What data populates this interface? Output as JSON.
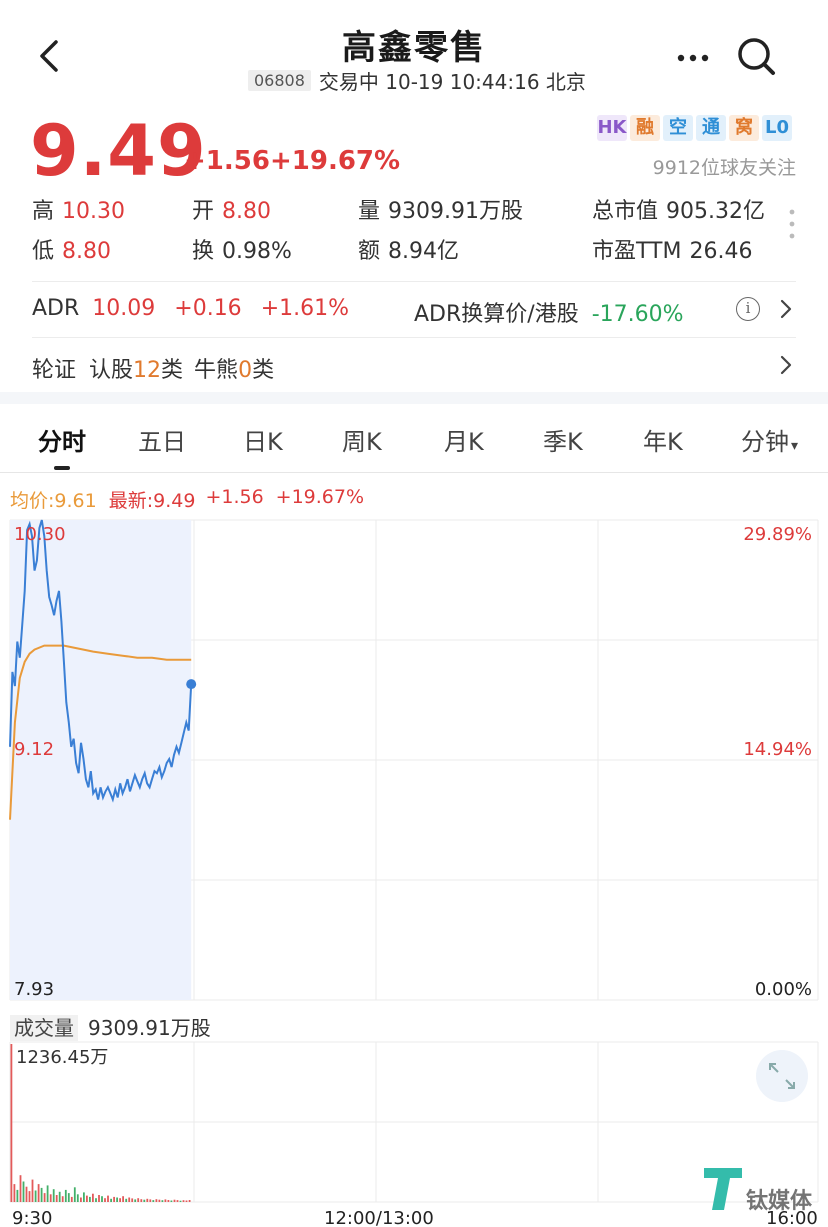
{
  "header": {
    "title": "高鑫零售",
    "code": "06808",
    "status": "交易中 10-19 10:44:16 北京"
  },
  "quote": {
    "price": "9.49",
    "change": "+1.56",
    "change_pct": "+19.67%",
    "tags": [
      {
        "label": "HK",
        "color": "#8a58c8",
        "bg": "#efe7fa"
      },
      {
        "label": "融",
        "color": "#e07a2e",
        "bg": "#fcebdc"
      },
      {
        "label": "空",
        "color": "#2f8fd6",
        "bg": "#e2f0fb"
      },
      {
        "label": "通",
        "color": "#2f8fd6",
        "bg": "#e2f0fb"
      },
      {
        "label": "窝",
        "color": "#e07a2e",
        "bg": "#fcebdc"
      },
      {
        "label": "L0",
        "color": "#2f8fd6",
        "bg": "#e2f0fb"
      }
    ],
    "followers": "9912位球友关注"
  },
  "stats": {
    "high_label": "高",
    "high": "10.30",
    "open_label": "开",
    "open": "8.80",
    "volume_label": "量",
    "volume": "9309.91万股",
    "mcap_label": "总市值",
    "mcap": "905.32亿",
    "low_label": "低",
    "low": "8.80",
    "turnover_label": "换",
    "turnover": "0.98%",
    "amount_label": "额",
    "amount": "8.94亿",
    "pe_label": "市盈TTM",
    "pe": "26.46"
  },
  "adr": {
    "label": "ADR",
    "price": "10.09",
    "change": "+0.16",
    "change_pct": "+1.61%",
    "conv_label": "ADR换算价/港股",
    "conv_value": "-17.60%"
  },
  "warrants": {
    "prefix": "轮证",
    "rengu_label": "认股",
    "rengu_count": "12",
    "rengu_suffix": "类",
    "niuxiong_label": "牛熊",
    "niuxiong_count": "0",
    "niuxiong_suffix": "类"
  },
  "tabs": [
    "分时",
    "五日",
    "日K",
    "周K",
    "月K",
    "季K",
    "年K",
    "分钟"
  ],
  "legend": {
    "avg": "均价:9.61",
    "latest": "最新:9.49",
    "change": "+1.56",
    "change_pct": "+19.67%"
  },
  "chart_data": {
    "type": "line",
    "title": "",
    "y_left_ticks": [
      "10.30",
      "9.12",
      "7.93"
    ],
    "y_right_ticks": [
      "29.89%",
      "14.94%",
      "0.00%"
    ],
    "ylim": [
      7.93,
      10.3
    ],
    "x_ticks": [
      "9:30",
      "12:00/13:00",
      "16:00"
    ],
    "series": [
      {
        "name": "最新",
        "color": "#3a7fd5",
        "x_minutes": [
          0,
          1,
          2,
          3,
          4,
          5,
          6,
          7,
          8,
          9,
          10,
          11,
          12,
          13,
          14,
          15,
          16,
          17,
          18,
          19,
          20,
          21,
          22,
          23,
          24,
          25,
          26,
          27,
          28,
          29,
          30,
          31,
          32,
          33,
          34,
          35,
          36,
          37,
          38,
          39,
          40,
          41,
          42,
          43,
          44,
          45,
          46,
          47,
          48,
          49,
          50,
          51,
          52,
          53,
          54,
          55,
          56,
          57,
          58,
          59,
          60,
          61,
          62,
          63,
          64,
          65,
          66,
          67,
          68,
          69,
          70,
          71,
          72,
          73,
          74
        ],
        "values": [
          9.18,
          9.55,
          9.48,
          9.7,
          9.62,
          9.78,
          9.95,
          10.25,
          10.28,
          10.22,
          10.05,
          10.1,
          10.26,
          10.3,
          10.22,
          10.05,
          9.92,
          9.88,
          9.83,
          9.9,
          9.95,
          9.8,
          9.6,
          9.4,
          9.3,
          9.18,
          9.22,
          9.1,
          9.05,
          9.2,
          9.12,
          9.02,
          8.98,
          9.06,
          8.95,
          8.97,
          8.92,
          8.98,
          8.93,
          8.96,
          8.98,
          8.95,
          8.92,
          8.97,
          8.93,
          9.0,
          8.95,
          8.98,
          9.02,
          8.96,
          9.0,
          9.04,
          9.01,
          8.98,
          9.02,
          9.05,
          9.0,
          8.98,
          9.02,
          9.06,
          9.05,
          9.08,
          9.03,
          9.06,
          9.1,
          9.12,
          9.08,
          9.14,
          9.18,
          9.15,
          9.2,
          9.25,
          9.3,
          9.26,
          9.49
        ]
      },
      {
        "name": "均价",
        "color": "#e99a3a",
        "x_minutes": [
          0,
          2,
          4,
          6,
          8,
          10,
          14,
          18,
          22,
          26,
          30,
          34,
          40,
          46,
          52,
          58,
          64,
          70,
          74
        ],
        "values": [
          8.82,
          9.3,
          9.52,
          9.6,
          9.64,
          9.66,
          9.68,
          9.68,
          9.68,
          9.67,
          9.66,
          9.65,
          9.64,
          9.63,
          9.62,
          9.62,
          9.61,
          9.61,
          9.61
        ]
      }
    ],
    "volume": {
      "total_label": "成交量",
      "total": "9309.91万股",
      "max_label": "1236.45万",
      "bars": [
        {
          "v": 1236,
          "c": "r"
        },
        {
          "v": 140,
          "c": "r"
        },
        {
          "v": 95,
          "c": "g"
        },
        {
          "v": 210,
          "c": "r"
        },
        {
          "v": 160,
          "c": "g"
        },
        {
          "v": 120,
          "c": "r"
        },
        {
          "v": 85,
          "c": "r"
        },
        {
          "v": 175,
          "c": "r"
        },
        {
          "v": 90,
          "c": "g"
        },
        {
          "v": 140,
          "c": "r"
        },
        {
          "v": 110,
          "c": "g"
        },
        {
          "v": 70,
          "c": "r"
        },
        {
          "v": 130,
          "c": "g"
        },
        {
          "v": 60,
          "c": "r"
        },
        {
          "v": 100,
          "c": "g"
        },
        {
          "v": 55,
          "c": "r"
        },
        {
          "v": 80,
          "c": "g"
        },
        {
          "v": 45,
          "c": "r"
        },
        {
          "v": 95,
          "c": "g"
        },
        {
          "v": 70,
          "c": "g"
        },
        {
          "v": 40,
          "c": "r"
        },
        {
          "v": 115,
          "c": "g"
        },
        {
          "v": 60,
          "c": "g"
        },
        {
          "v": 35,
          "c": "r"
        },
        {
          "v": 75,
          "c": "g"
        },
        {
          "v": 50,
          "c": "r"
        },
        {
          "v": 40,
          "c": "g"
        },
        {
          "v": 65,
          "c": "r"
        },
        {
          "v": 30,
          "c": "g"
        },
        {
          "v": 55,
          "c": "r"
        },
        {
          "v": 45,
          "c": "g"
        },
        {
          "v": 30,
          "c": "r"
        },
        {
          "v": 50,
          "c": "r"
        },
        {
          "v": 25,
          "c": "g"
        },
        {
          "v": 40,
          "c": "r"
        },
        {
          "v": 35,
          "c": "g"
        },
        {
          "v": 30,
          "c": "r"
        },
        {
          "v": 45,
          "c": "r"
        },
        {
          "v": 25,
          "c": "g"
        },
        {
          "v": 35,
          "c": "r"
        },
        {
          "v": 28,
          "c": "r"
        },
        {
          "v": 20,
          "c": "g"
        },
        {
          "v": 30,
          "c": "r"
        },
        {
          "v": 22,
          "c": "r"
        },
        {
          "v": 18,
          "c": "g"
        },
        {
          "v": 25,
          "c": "r"
        },
        {
          "v": 20,
          "c": "r"
        },
        {
          "v": 15,
          "c": "g"
        },
        {
          "v": 22,
          "c": "r"
        },
        {
          "v": 18,
          "c": "r"
        },
        {
          "v": 14,
          "c": "g"
        },
        {
          "v": 20,
          "c": "r"
        },
        {
          "v": 16,
          "c": "r"
        },
        {
          "v": 12,
          "c": "g"
        },
        {
          "v": 18,
          "c": "r"
        },
        {
          "v": 15,
          "c": "r"
        },
        {
          "v": 10,
          "c": "g"
        },
        {
          "v": 14,
          "c": "r"
        },
        {
          "v": 12,
          "c": "r"
        },
        {
          "v": 16,
          "c": "r"
        }
      ]
    }
  },
  "watermark": "钛媒体"
}
